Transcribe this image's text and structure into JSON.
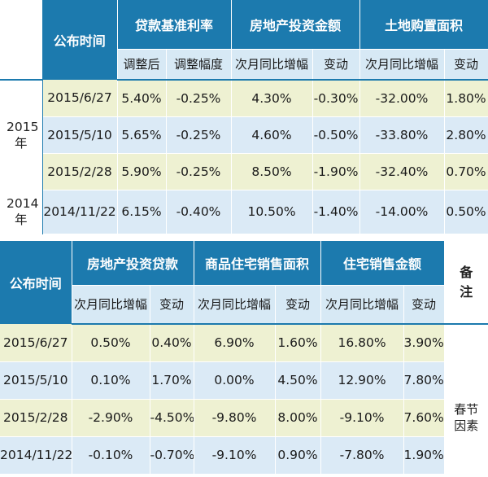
{
  "table1": {
    "col_time": "公布时间",
    "groups": [
      "贷款基准利率",
      "房地产投资金额",
      "土地购置面积"
    ],
    "subheaders": [
      "调整后",
      "调整幅度",
      "次月同比增幅",
      "变动",
      "次月同比增幅",
      "变动"
    ],
    "year_2015": "2015年",
    "year_2014": "2014年",
    "rows": [
      {
        "date": "2015/6/27",
        "cells": [
          "5.40%",
          "-0.25%",
          "4.30%",
          "-0.30%",
          "-32.00%",
          "1.80%"
        ]
      },
      {
        "date": "2015/5/10",
        "cells": [
          "5.65%",
          "-0.25%",
          "4.60%",
          "-0.50%",
          "-33.80%",
          "2.80%"
        ]
      },
      {
        "date": "2015/2/28",
        "cells": [
          "5.90%",
          "-0.25%",
          "8.50%",
          "-1.90%",
          "-32.40%",
          "0.70%"
        ]
      },
      {
        "date": "2014/11/22",
        "cells": [
          "6.15%",
          "-0.40%",
          "10.50%",
          "-1.40%",
          "-14.00%",
          "0.50%"
        ]
      }
    ]
  },
  "table2": {
    "col_time": "公布时间",
    "groups": [
      "房地产投资贷款",
      "商品住宅销售面积",
      "住宅销售金额"
    ],
    "note_header": "备注",
    "subheaders": [
      "次月同比增幅",
      "变动",
      "次月同比增幅",
      "变动",
      "次月同比增幅",
      "变动"
    ],
    "rows": [
      {
        "date": "2015/6/27",
        "cells": [
          "0.50%",
          "0.40%",
          "6.90%",
          "1.60%",
          "16.80%",
          "3.90%"
        ],
        "note": ""
      },
      {
        "date": "2015/5/10",
        "cells": [
          "0.10%",
          "1.70%",
          "0.00%",
          "4.50%",
          "12.90%",
          "7.80%"
        ],
        "note": ""
      },
      {
        "date": "2015/2/28",
        "cells": [
          "-2.90%",
          "-4.50%",
          "-9.80%",
          "8.00%",
          "-9.10%",
          "7.60%"
        ],
        "note": "春节因素"
      },
      {
        "date": "2014/11/22",
        "cells": [
          "-0.10%",
          "-0.70%",
          "-9.10%",
          "0.90%",
          "-7.80%",
          "1.90%"
        ],
        "note": ""
      }
    ]
  }
}
